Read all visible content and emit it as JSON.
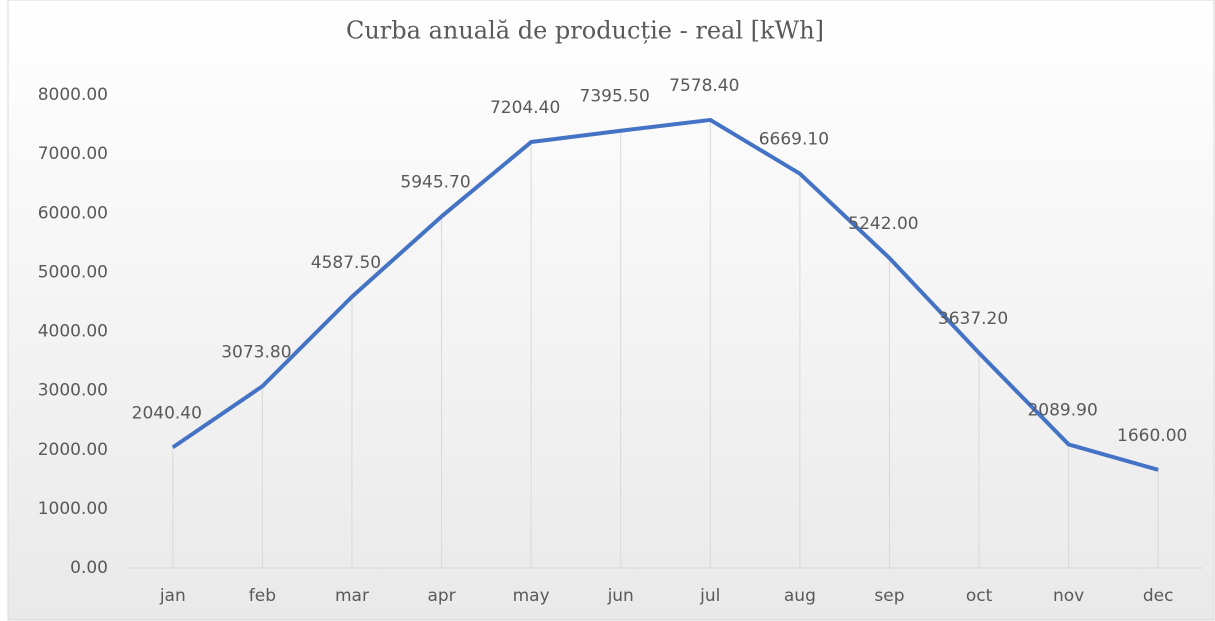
{
  "chart_data": {
    "type": "line",
    "title": "Curba anuală de producție - real [kWh]",
    "categories": [
      "jan",
      "feb",
      "mar",
      "apr",
      "may",
      "jun",
      "jul",
      "aug",
      "sep",
      "oct",
      "nov",
      "dec"
    ],
    "series": [
      {
        "name": "real",
        "color": "#4472c4",
        "values": [
          2040.4,
          3073.8,
          4587.5,
          5945.7,
          7204.4,
          7395.5,
          7578.4,
          6669.1,
          5242,
          3637.2,
          2089.9,
          1660
        ],
        "value_labels": [
          "2040.40",
          "3073.80",
          "4587.50",
          "5945.70",
          "7204.40",
          "7395.50",
          "7578.40",
          "6669.10",
          "5242.00",
          "3637.20",
          "2089.90",
          "1660.00"
        ]
      }
    ],
    "ylim": [
      0,
      8000
    ],
    "yticks": [
      {
        "value": 0,
        "label": "0.00"
      },
      {
        "value": 1000,
        "label": "1000.00"
      },
      {
        "value": 2000,
        "label": "2000.00"
      },
      {
        "value": 3000,
        "label": "3000.00"
      },
      {
        "value": 4000,
        "label": "4000.00"
      },
      {
        "value": 5000,
        "label": "5000.00"
      },
      {
        "value": 6000,
        "label": "6000.00"
      },
      {
        "value": 7000,
        "label": "7000.00"
      },
      {
        "value": 8000,
        "label": "8000.00"
      }
    ],
    "drop_lines": true
  }
}
